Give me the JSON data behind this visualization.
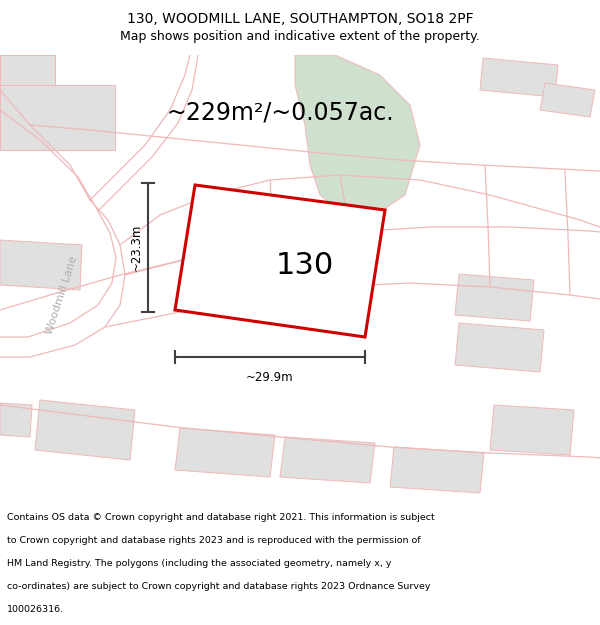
{
  "title_line1": "130, WOODMILL LANE, SOUTHAMPTON, SO18 2PF",
  "title_line2": "Map shows position and indicative extent of the property.",
  "area_text": "~229m²/~0.057ac.",
  "property_label": "130",
  "dim_vertical": "~23.3m",
  "dim_horizontal": "~29.9m",
  "road_label": "Woodmill Lane",
  "footer_lines": [
    "Contains OS data © Crown copyright and database right 2021. This information is subject",
    "to Crown copyright and database rights 2023 and is reproduced with the permission of",
    "HM Land Registry. The polygons (including the associated geometry, namely x, y",
    "co-ordinates) are subject to Crown copyright and database rights 2023 Ordnance Survey",
    "100026316."
  ],
  "map_bg": "#ffffff",
  "building_color": "#e0e0e0",
  "green_color": "#cfe0cf",
  "road_outline_color": "#f0b8b8",
  "property_fill": "#ffffff",
  "property_edge": "#cc0000",
  "dim_line_color": "#404040",
  "road_text_color": "#b0b0b0",
  "title_fontsize": 10,
  "subtitle_fontsize": 9,
  "area_fontsize": 17,
  "label_fontsize": 22,
  "footer_fontsize": 6.8,
  "dim_fontsize": 8.5
}
